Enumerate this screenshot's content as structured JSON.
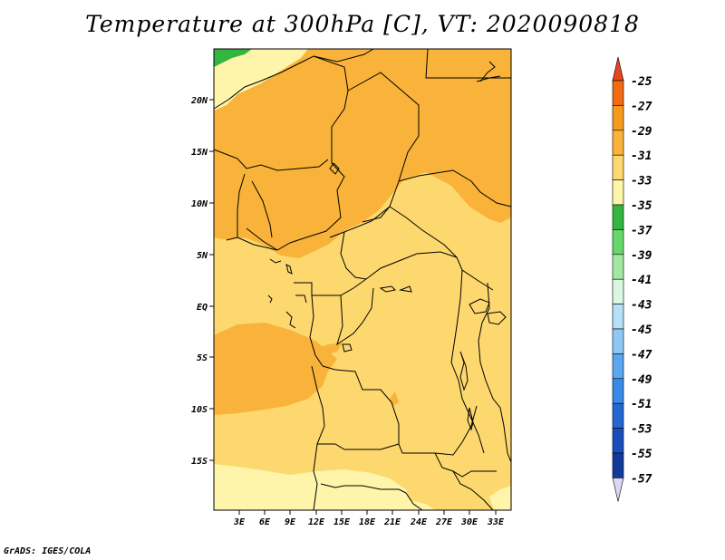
{
  "title": "Temperature at 300hPa [C], VT: 2020090818",
  "credit": "GrADS: IGES/COLA",
  "map": {
    "lat_labels": [
      "20N",
      "15N",
      "10N",
      "5N",
      "EQ",
      "5S",
      "10S",
      "15S"
    ],
    "lon_labels": [
      "3E",
      "6E",
      "9E",
      "12E",
      "15E",
      "18E",
      "21E",
      "24E",
      "27E",
      "30E",
      "33E"
    ]
  },
  "colorbar": {
    "labels": [
      "-25",
      "-27",
      "-29",
      "-31",
      "-33",
      "-35",
      "-37",
      "-39",
      "-41",
      "-43",
      "-45",
      "-47",
      "-49",
      "-51",
      "-53",
      "-55",
      "-57"
    ],
    "colors": {
      "above": "#e8451c",
      "bins": [
        "#f26a13",
        "#f59a1b",
        "#f9b33a",
        "#fcd86e",
        "#fef4aa",
        "#33b540",
        "#66d86a",
        "#a3e8a0",
        "#daf7e2",
        "#b5e0f7",
        "#8fc8f5",
        "#5aa6ef",
        "#3a89e8",
        "#2368d2",
        "#1b4ebd",
        "#123a9b"
      ],
      "below": "#0a1a66",
      "below_tip": "#dcd6f7"
    }
  },
  "field_colors": {
    "warm": "#f9b33a",
    "mid": "#fcd86e",
    "cool": "#fef4aa",
    "green": "#33b540"
  }
}
